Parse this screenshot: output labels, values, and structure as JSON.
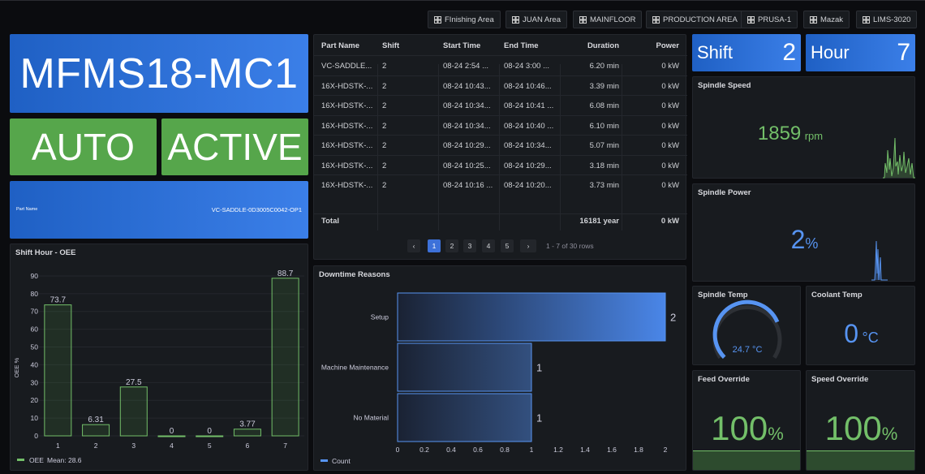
{
  "nav": {
    "buttons": [
      "FInishing Area",
      "JUAN Area",
      "MAINFLOOR",
      "PRODUCTION AREA",
      "PRUSA-1",
      "Mazak",
      "LIMS-3020"
    ]
  },
  "machine": {
    "name": "MFMS18-MC1",
    "mode": "AUTO",
    "execution": "ACTIVE",
    "part_name_label": "Part Name",
    "part_name_value": "VC-SADDLE-0D3005C0042-OP1"
  },
  "shift_stat": {
    "label": "Shift",
    "value": "2"
  },
  "hour_stat": {
    "label": "Hour",
    "value": "7"
  },
  "table": {
    "headers": [
      "Part Name",
      "Shift",
      "Start Time",
      "End Time",
      "Duration",
      "Power"
    ],
    "rows": [
      [
        "VC-SADDLE...",
        "2",
        "08-24 2:54 ...",
        "08-24 3:00 ...",
        "6.20 min",
        "0 kW"
      ],
      [
        "16X-HDSTK-...",
        "2",
        "08-24 10:43...",
        "08-24 10:46...",
        "3.39 min",
        "0 kW"
      ],
      [
        "16X-HDSTK-...",
        "2",
        "08-24 10:34...",
        "08-24 10:41 ...",
        "6.08 min",
        "0 kW"
      ],
      [
        "16X-HDSTK-...",
        "2",
        "08-24 10:34...",
        "08-24 10:40 ...",
        "6.10 min",
        "0 kW"
      ],
      [
        "16X-HDSTK-...",
        "2",
        "08-24 10:29...",
        "08-24 10:34...",
        "5.07 min",
        "0 kW"
      ],
      [
        "16X-HDSTK-...",
        "2",
        "08-24 10:25...",
        "08-24 10:29...",
        "3.18 min",
        "0 kW"
      ],
      [
        "16X-HDSTK-...",
        "2",
        "08-24 10:16 ...",
        "08-24 10:20...",
        "3.73 min",
        "0 kW"
      ]
    ],
    "total_label": "Total",
    "total_duration": "16181 year",
    "total_power": "0 kW",
    "pagination": {
      "prev": "‹",
      "next": "›",
      "pages": [
        "1",
        "2",
        "3",
        "4",
        "5"
      ],
      "current": "1",
      "summary": "1 - 7 of 30 rows"
    }
  },
  "spindle_speed": {
    "title": "Spindle Speed",
    "value": "1859",
    "unit": "rpm"
  },
  "spindle_power": {
    "title": "Spindle Power",
    "value": "2",
    "unit": "%"
  },
  "spindle_temp": {
    "title": "Spindle Temp",
    "value": "24.7 °C",
    "gauge_fraction": 0.75
  },
  "coolant_temp": {
    "title": "Coolant Temp",
    "value": "0",
    "unit": "°C"
  },
  "feed_override": {
    "title": "Feed Override",
    "value": "100",
    "unit": "%"
  },
  "speed_override": {
    "title": "Speed Override",
    "value": "100",
    "unit": "%"
  },
  "colors": {
    "green": "#73bf69",
    "blue": "#5794f2",
    "panel": "#181b1f",
    "bar_green": "#56a64b"
  },
  "chart_data": [
    {
      "type": "bar",
      "title": "Shift Hour - OEE",
      "ylabel": "OEE %",
      "categories": [
        "1",
        "2",
        "3",
        "4",
        "5",
        "6",
        "7"
      ],
      "values": [
        73.7,
        6.31,
        27.5,
        0,
        0,
        3.77,
        88.7
      ],
      "value_labels": [
        "73.7",
        "6.31",
        "27.5",
        "0",
        "0",
        "3.77",
        "88.7"
      ],
      "ylim": [
        0,
        95
      ],
      "yticks": [
        "0",
        "10",
        "20",
        "30",
        "40",
        "50",
        "60",
        "70",
        "80",
        "90"
      ],
      "legend": {
        "series": "OEE",
        "mean": "Mean: 28.6",
        "placement": "bottom-left"
      },
      "grid": true
    },
    {
      "type": "bar",
      "orientation": "horizontal",
      "title": "Downtime Reasons",
      "categories": [
        "Setup",
        "Machine Maintenance",
        "No Material"
      ],
      "values": [
        2,
        1,
        1
      ],
      "xlim": [
        0,
        2
      ],
      "xticks": [
        "0",
        "0.2",
        "0.4",
        "0.6",
        "0.8",
        "1",
        "1.2",
        "1.4",
        "1.6",
        "1.8",
        "2"
      ],
      "legend": {
        "series": "Count",
        "placement": "bottom-left"
      },
      "grid": false
    }
  ]
}
